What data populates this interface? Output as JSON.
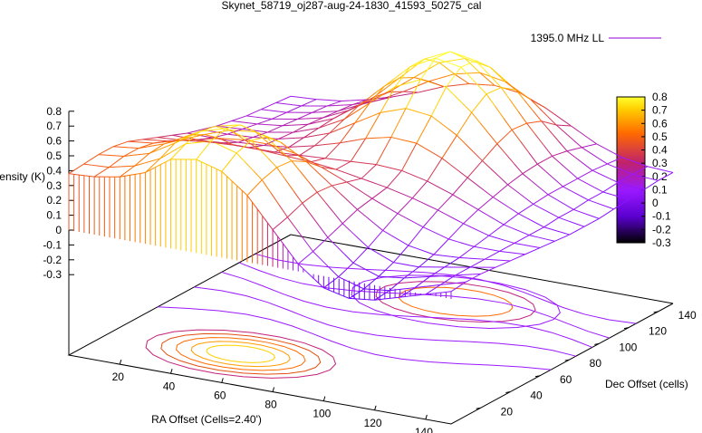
{
  "chart_data": {
    "type": "surface3d",
    "title": "Skynet_58719_oj287-aug-24-1830_41593_50275_cal",
    "legend": {
      "entries": [
        "1395.0 MHz LL"
      ],
      "placement": "top-right",
      "line_color": "#9400d3"
    },
    "xlabel": "RA Offset (Cells=2.40')",
    "ylabel": "Dec Offset (cells)",
    "zlabel": "Intensity (K)",
    "x_ticks": [
      "20",
      "40",
      "60",
      "80",
      "100",
      "120",
      "140"
    ],
    "y_ticks": [
      "20",
      "40",
      "60",
      "80",
      "100",
      "120",
      "140"
    ],
    "z_ticks": [
      "0.8",
      "0.7",
      "0.6",
      "0.5",
      "0.4",
      "0.3",
      "0.2",
      "0.1",
      "0",
      "-0.1",
      "-0.2",
      "-0.3"
    ],
    "colorbar_ticks": [
      "0.8",
      "0.7",
      "0.6",
      "0.5",
      "0.4",
      "0.3",
      "0.2",
      "0.1",
      "0",
      "-0.1",
      "-0.2",
      "-0.3"
    ],
    "xlim": [
      0,
      150
    ],
    "ylim": [
      0,
      150
    ],
    "zlim": [
      -0.3,
      0.8
    ],
    "cblim": [
      -0.3,
      0.8
    ],
    "palette": [
      "#000000",
      "#6a00ff",
      "#9b19ff",
      "#c2227a",
      "#ff6a00",
      "#ffd000",
      "#ffff30"
    ],
    "surface_rows": [
      {
        "y": 0,
        "z": [
          0.38,
          0.39,
          0.42,
          0.48,
          0.6,
          0.63,
          0.58,
          0.45,
          0.25,
          0.05,
          -0.08,
          -0.12,
          -0.1,
          -0.05,
          0.0,
          0.05
        ]
      },
      {
        "y": 10,
        "z": [
          0.39,
          0.4,
          0.44,
          0.52,
          0.65,
          0.7,
          0.65,
          0.5,
          0.28,
          0.08,
          -0.06,
          -0.11,
          -0.09,
          -0.04,
          0.01,
          0.06
        ]
      },
      {
        "y": 20,
        "z": [
          0.4,
          0.42,
          0.47,
          0.57,
          0.68,
          0.73,
          0.68,
          0.53,
          0.32,
          0.12,
          -0.02,
          -0.08,
          -0.06,
          -0.02,
          0.02,
          0.06
        ]
      },
      {
        "y": 30,
        "z": [
          0.4,
          0.42,
          0.48,
          0.57,
          0.66,
          0.7,
          0.65,
          0.52,
          0.34,
          0.16,
          0.03,
          -0.04,
          -0.04,
          -0.01,
          0.02,
          0.05
        ]
      },
      {
        "y": 40,
        "z": [
          0.38,
          0.4,
          0.45,
          0.52,
          0.58,
          0.6,
          0.56,
          0.46,
          0.33,
          0.2,
          0.09,
          0.02,
          -0.01,
          0.0,
          0.02,
          0.04
        ]
      },
      {
        "y": 50,
        "z": [
          0.34,
          0.36,
          0.4,
          0.44,
          0.46,
          0.46,
          0.43,
          0.37,
          0.3,
          0.22,
          0.15,
          0.09,
          0.04,
          0.02,
          0.02,
          0.03
        ]
      },
      {
        "y": 60,
        "z": [
          0.3,
          0.31,
          0.33,
          0.34,
          0.34,
          0.33,
          0.32,
          0.3,
          0.27,
          0.24,
          0.2,
          0.15,
          0.09,
          0.04,
          0.02,
          0.02
        ]
      },
      {
        "y": 70,
        "z": [
          0.26,
          0.26,
          0.27,
          0.27,
          0.27,
          0.28,
          0.29,
          0.3,
          0.31,
          0.3,
          0.26,
          0.2,
          0.13,
          0.06,
          0.02,
          0.01
        ]
      },
      {
        "y": 80,
        "z": [
          0.22,
          0.22,
          0.22,
          0.23,
          0.25,
          0.29,
          0.34,
          0.4,
          0.44,
          0.43,
          0.36,
          0.26,
          0.16,
          0.08,
          0.02,
          0.0
        ]
      },
      {
        "y": 90,
        "z": [
          0.19,
          0.19,
          0.2,
          0.22,
          0.26,
          0.32,
          0.42,
          0.52,
          0.58,
          0.56,
          0.46,
          0.32,
          0.19,
          0.09,
          0.03,
          0.0
        ]
      },
      {
        "y": 100,
        "z": [
          0.16,
          0.17,
          0.18,
          0.21,
          0.27,
          0.36,
          0.5,
          0.64,
          0.72,
          0.7,
          0.56,
          0.38,
          0.21,
          0.1,
          0.03,
          0.0
        ]
      },
      {
        "y": 110,
        "z": [
          0.14,
          0.15,
          0.17,
          0.21,
          0.28,
          0.4,
          0.56,
          0.72,
          0.81,
          0.78,
          0.63,
          0.42,
          0.22,
          0.1,
          0.04,
          0.01
        ]
      },
      {
        "y": 120,
        "z": [
          0.12,
          0.13,
          0.16,
          0.2,
          0.28,
          0.4,
          0.56,
          0.72,
          0.8,
          0.77,
          0.62,
          0.41,
          0.22,
          0.1,
          0.04,
          0.02
        ]
      },
      {
        "y": 130,
        "z": [
          0.11,
          0.12,
          0.15,
          0.19,
          0.27,
          0.38,
          0.51,
          0.64,
          0.7,
          0.67,
          0.55,
          0.37,
          0.2,
          0.1,
          0.05,
          0.03
        ]
      },
      {
        "y": 140,
        "z": [
          0.1,
          0.11,
          0.14,
          0.18,
          0.24,
          0.33,
          0.43,
          0.51,
          0.55,
          0.52,
          0.43,
          0.29,
          0.17,
          0.09,
          0.05,
          0.04
        ]
      },
      {
        "y": 150,
        "z": [
          0.09,
          0.1,
          0.12,
          0.16,
          0.21,
          0.27,
          0.34,
          0.39,
          0.41,
          0.39,
          0.32,
          0.23,
          0.14,
          0.08,
          0.05,
          0.04
        ]
      }
    ],
    "surface_x": [
      0,
      10,
      20,
      30,
      40,
      50,
      60,
      70,
      80,
      90,
      100,
      110,
      120,
      130,
      140,
      150
    ]
  }
}
